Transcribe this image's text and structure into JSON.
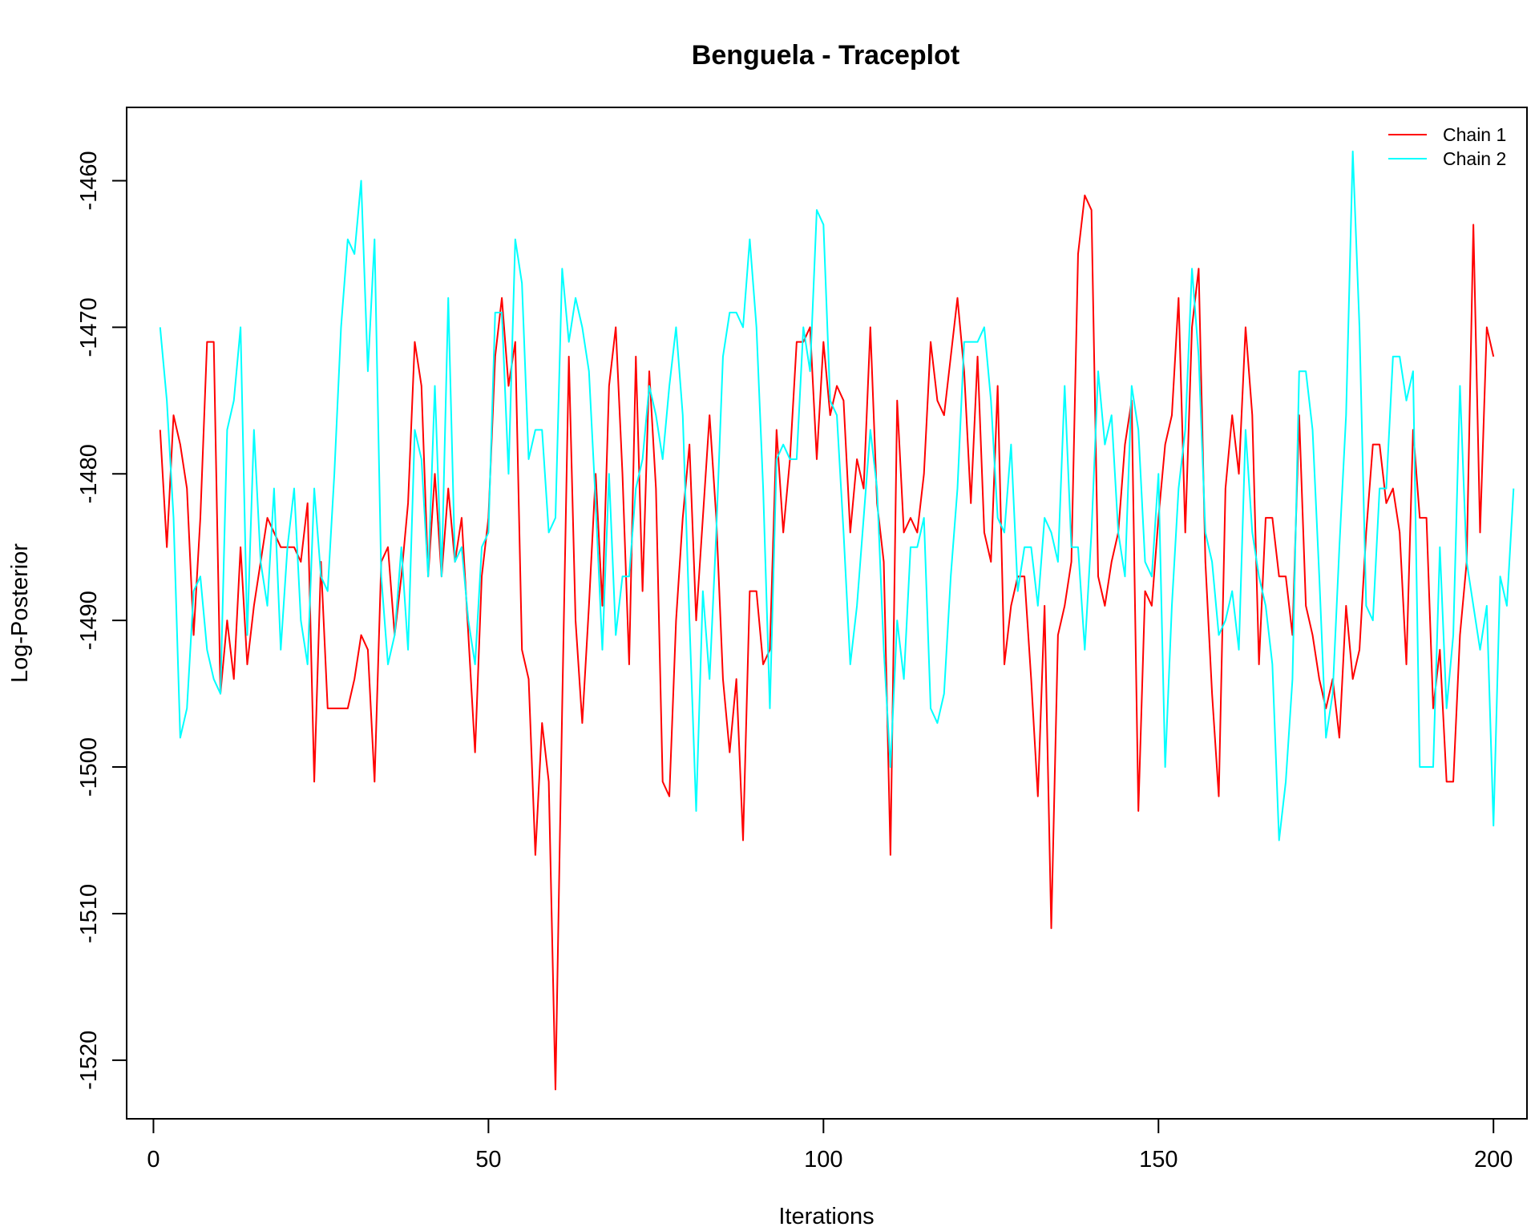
{
  "chart_data": {
    "type": "line",
    "title": "Benguela - Traceplot",
    "xlabel": "Iterations",
    "ylabel": "Log-Posterior",
    "xlim": [
      -4,
      205
    ],
    "ylim": [
      -1524,
      -1455
    ],
    "xticks": [
      0,
      50,
      100,
      150,
      200
    ],
    "yticks": [
      -1460,
      -1470,
      -1480,
      -1490,
      -1500,
      -1510,
      -1520
    ],
    "xtick_labels": [
      "0",
      "50",
      "100",
      "150",
      "200"
    ],
    "ytick_labels": [
      "-1460",
      "-1470",
      "-1480",
      "-1490",
      "-1500",
      "-1510",
      "-1520"
    ],
    "grid": false,
    "legend_position": "top-right",
    "series": [
      {
        "name": "Chain 1",
        "color": "#ff0000",
        "values": [
          -1477,
          -1485,
          -1476,
          -1478,
          -1481,
          -1491,
          -1483,
          -1471,
          -1471,
          -1495,
          -1490,
          -1494,
          -1485,
          -1493,
          -1489,
          -1486,
          -1483,
          -1484,
          -1485,
          -1485,
          -1485,
          -1486,
          -1482,
          -1501,
          -1486,
          -1496,
          -1496,
          -1496,
          -1496,
          -1494,
          -1491,
          -1492,
          -1501,
          -1486,
          -1485,
          -1491,
          -1487,
          -1482,
          -1471,
          -1474,
          -1487,
          -1480,
          -1487,
          -1481,
          -1486,
          -1483,
          -1491,
          -1499,
          -1487,
          -1483,
          -1472,
          -1468,
          -1474,
          -1471,
          -1492,
          -1494,
          -1506,
          -1497,
          -1501,
          -1522,
          -1496,
          -1472,
          -1490,
          -1497,
          -1489,
          -1480,
          -1489,
          -1474,
          -1470,
          -1480,
          -1493,
          -1472,
          -1488,
          -1473,
          -1481,
          -1501,
          -1502,
          -1490,
          -1483,
          -1478,
          -1490,
          -1483,
          -1476,
          -1483,
          -1494,
          -1499,
          -1494,
          -1505,
          -1488,
          -1488,
          -1493,
          -1492,
          -1477,
          -1484,
          -1479,
          -1471,
          -1471,
          -1470,
          -1479,
          -1471,
          -1476,
          -1474,
          -1475,
          -1484,
          -1479,
          -1481,
          -1470,
          -1482,
          -1486,
          -1506,
          -1475,
          -1484,
          -1483,
          -1484,
          -1480,
          -1471,
          -1475,
          -1476,
          -1472,
          -1468,
          -1473,
          -1482,
          -1472,
          -1484,
          -1486,
          -1474,
          -1493,
          -1489,
          -1487,
          -1487,
          -1494,
          -1502,
          -1489,
          -1511,
          -1491,
          -1489,
          -1486,
          -1465,
          -1461,
          -1462,
          -1487,
          -1489,
          -1486,
          -1484,
          -1478,
          -1475,
          -1503,
          -1488,
          -1489,
          -1483,
          -1478,
          -1476,
          -1468,
          -1484,
          -1470,
          -1466,
          -1486,
          -1495,
          -1502,
          -1481,
          -1476,
          -1480,
          -1470,
          -1476,
          -1493,
          -1483,
          -1483,
          -1487,
          -1487,
          -1491,
          -1476,
          -1489,
          -1491,
          -1494,
          -1496,
          -1494,
          -1498,
          -1489,
          -1494,
          -1492,
          -1484,
          -1478,
          -1478,
          -1482,
          -1481,
          -1484,
          -1493,
          -1477,
          -1483,
          -1483,
          -1496,
          -1492,
          -1501,
          -1501,
          -1491,
          -1486,
          -1463,
          -1484,
          -1470,
          -1472
        ]
      },
      {
        "name": "Chain 2",
        "color": "#00ffff",
        "values": [
          -1470,
          -1475,
          -1483,
          -1498,
          -1496,
          -1488,
          -1487,
          -1492,
          -1494,
          -1495,
          -1477,
          -1475,
          -1470,
          -1491,
          -1477,
          -1486,
          -1489,
          -1481,
          -1492,
          -1485,
          -1481,
          -1490,
          -1493,
          -1481,
          -1487,
          -1488,
          -1480,
          -1470,
          -1464,
          -1465,
          -1460,
          -1473,
          -1464,
          -1487,
          -1493,
          -1491,
          -1485,
          -1492,
          -1477,
          -1479,
          -1487,
          -1474,
          -1487,
          -1468,
          -1486,
          -1485,
          -1490,
          -1493,
          -1485,
          -1484,
          -1469,
          -1469,
          -1480,
          -1464,
          -1467,
          -1479,
          -1477,
          -1477,
          -1484,
          -1483,
          -1466,
          -1471,
          -1468,
          -1470,
          -1473,
          -1482,
          -1492,
          -1480,
          -1491,
          -1487,
          -1487,
          -1481,
          -1479,
          -1474,
          -1476,
          -1479,
          -1474,
          -1470,
          -1476,
          -1490,
          -1503,
          -1488,
          -1494,
          -1484,
          -1472,
          -1469,
          -1469,
          -1470,
          -1464,
          -1470,
          -1481,
          -1496,
          -1479,
          -1478,
          -1479,
          -1479,
          -1470,
          -1473,
          -1462,
          -1463,
          -1475,
          -1476,
          -1484,
          -1493,
          -1489,
          -1483,
          -1477,
          -1481,
          -1492,
          -1500,
          -1490,
          -1494,
          -1485,
          -1485,
          -1483,
          -1496,
          -1497,
          -1495,
          -1487,
          -1481,
          -1471,
          -1471,
          -1471,
          -1470,
          -1475,
          -1483,
          -1484,
          -1478,
          -1488,
          -1485,
          -1485,
          -1489,
          -1483,
          -1484,
          -1486,
          -1474,
          -1485,
          -1485,
          -1492,
          -1484,
          -1473,
          -1478,
          -1476,
          -1484,
          -1487,
          -1474,
          -1477,
          -1486,
          -1487,
          -1480,
          -1500,
          -1489,
          -1481,
          -1477,
          -1466,
          -1472,
          -1484,
          -1486,
          -1491,
          -1490,
          -1488,
          -1492,
          -1477,
          -1484,
          -1487,
          -1489,
          -1493,
          -1505,
          -1501,
          -1494,
          -1473,
          -1473,
          -1477,
          -1487,
          -1498,
          -1495,
          -1485,
          -1476,
          -1458,
          -1470,
          -1489,
          -1490,
          -1481,
          -1481,
          -1472,
          -1472,
          -1475,
          -1473,
          -1500,
          -1500,
          -1500,
          -1485,
          -1496,
          -1491,
          -1474,
          -1486,
          -1489,
          -1492,
          -1489,
          -1504,
          -1487,
          -1489,
          -1481
        ]
      }
    ]
  }
}
